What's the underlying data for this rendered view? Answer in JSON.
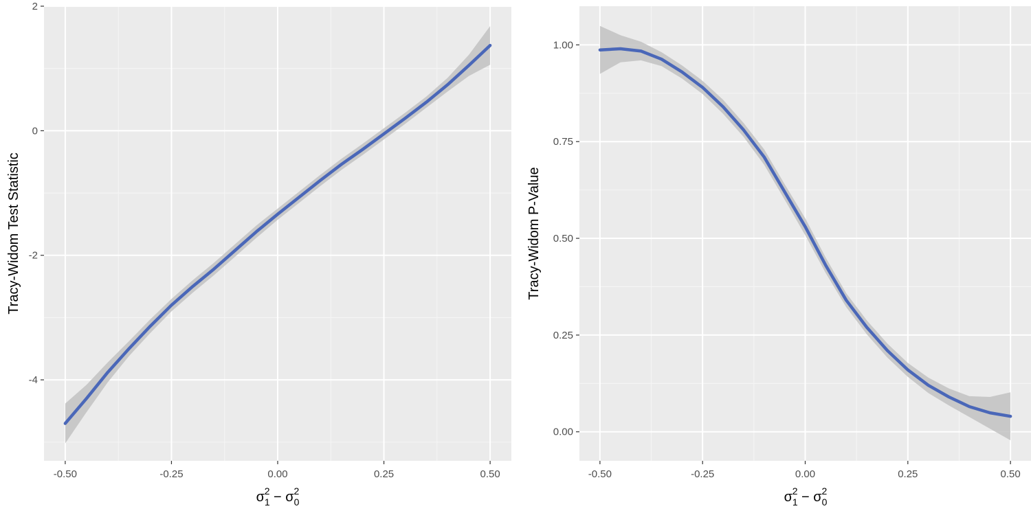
{
  "colors": {
    "panel_bg": "#EBEBEB",
    "grid_major": "#FFFFFF",
    "grid_minor": "#F5F5F5",
    "line": "#4A67B8",
    "ribbon": "#C2C2C2",
    "tick": "#333333"
  },
  "chart_data": [
    {
      "type": "line",
      "xlabel": "σ1² − σ0²",
      "ylabel": "Tracy-Widom Test Statistic",
      "xlim": [
        -0.55,
        0.55
      ],
      "ylim": [
        -5.3,
        2.0
      ],
      "x_ticks": [
        -0.5,
        -0.25,
        0.0,
        0.25,
        0.5
      ],
      "x_tick_labels": [
        "-0.50",
        "-0.25",
        "0.00",
        "0.25",
        "0.50"
      ],
      "y_ticks": [
        -4,
        -2,
        0,
        2
      ],
      "y_tick_labels": [
        "-4",
        "-2",
        "0",
        "2"
      ],
      "grid": true,
      "series": [
        {
          "x": [
            -0.5,
            -0.45,
            -0.4,
            -0.35,
            -0.3,
            -0.25,
            -0.2,
            -0.15,
            -0.1,
            -0.05,
            0.0,
            0.05,
            0.1,
            0.15,
            0.2,
            0.25,
            0.3,
            0.35,
            0.4,
            0.45,
            0.5
          ],
          "y": [
            -4.7,
            -4.3,
            -3.88,
            -3.5,
            -3.14,
            -2.8,
            -2.5,
            -2.22,
            -1.92,
            -1.62,
            -1.34,
            -1.07,
            -0.8,
            -0.54,
            -0.3,
            -0.05,
            0.2,
            0.46,
            0.74,
            1.05,
            1.37
          ],
          "lower": [
            -5.02,
            -4.52,
            -4.04,
            -3.62,
            -3.25,
            -2.9,
            -2.6,
            -2.32,
            -2.02,
            -1.72,
            -1.43,
            -1.16,
            -0.89,
            -0.63,
            -0.39,
            -0.14,
            0.11,
            0.37,
            0.63,
            0.88,
            1.06
          ],
          "upper": [
            -4.38,
            -4.08,
            -3.72,
            -3.38,
            -3.03,
            -2.7,
            -2.4,
            -2.12,
            -1.82,
            -1.52,
            -1.25,
            -0.98,
            -0.71,
            -0.45,
            -0.21,
            0.04,
            0.29,
            0.55,
            0.85,
            1.22,
            1.68
          ]
        }
      ]
    },
    {
      "type": "line",
      "xlabel": "σ1² − σ0²",
      "ylabel": "Tracy-Widom P-Value",
      "xlim": [
        -0.55,
        0.55
      ],
      "ylim": [
        -0.075,
        1.1
      ],
      "x_ticks": [
        -0.5,
        -0.25,
        0.0,
        0.25,
        0.5
      ],
      "x_tick_labels": [
        "-0.50",
        "-0.25",
        "0.00",
        "0.25",
        "0.50"
      ],
      "y_ticks": [
        0.0,
        0.25,
        0.5,
        0.75,
        1.0
      ],
      "y_tick_labels": [
        "0.00",
        "0.25",
        "0.50",
        "0.75",
        "1.00"
      ],
      "grid": true,
      "series": [
        {
          "x": [
            -0.5,
            -0.45,
            -0.4,
            -0.35,
            -0.3,
            -0.25,
            -0.2,
            -0.15,
            -0.1,
            -0.05,
            0.0,
            0.05,
            0.1,
            0.15,
            0.2,
            0.25,
            0.3,
            0.35,
            0.4,
            0.45,
            0.5
          ],
          "y": [
            0.987,
            0.99,
            0.984,
            0.963,
            0.93,
            0.89,
            0.84,
            0.78,
            0.71,
            0.62,
            0.53,
            0.43,
            0.34,
            0.27,
            0.21,
            0.16,
            0.12,
            0.09,
            0.065,
            0.049,
            0.04
          ],
          "lower": [
            0.925,
            0.955,
            0.96,
            0.945,
            0.913,
            0.873,
            0.822,
            0.762,
            0.69,
            0.6,
            0.508,
            0.41,
            0.322,
            0.252,
            0.192,
            0.142,
            0.1,
            0.068,
            0.038,
            0.008,
            -0.022
          ],
          "upper": [
            1.049,
            1.025,
            1.008,
            0.981,
            0.947,
            0.907,
            0.858,
            0.798,
            0.73,
            0.64,
            0.552,
            0.45,
            0.358,
            0.288,
            0.228,
            0.178,
            0.14,
            0.112,
            0.092,
            0.09,
            0.102
          ]
        }
      ]
    }
  ]
}
